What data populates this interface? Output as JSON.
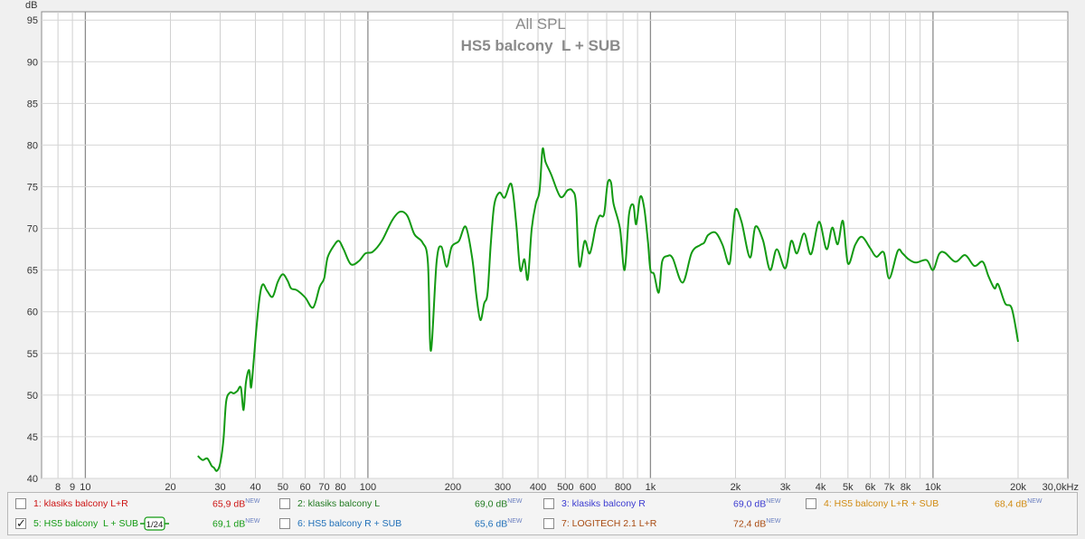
{
  "chart_data": {
    "type": "line",
    "title": "All SPL",
    "subtitle": "HS5 balcony  L + SUB",
    "ylabel": "dB",
    "xlabel": "",
    "x_scale": "log",
    "xlim": [
      7,
      30000
    ],
    "ylim": [
      40,
      96
    ],
    "grid": true,
    "y_ticks": [
      40,
      45,
      50,
      55,
      60,
      65,
      70,
      75,
      80,
      85,
      90,
      95
    ],
    "x_tick_labels": [
      {
        "f": 8,
        "t": "8"
      },
      {
        "f": 9,
        "t": "9"
      },
      {
        "f": 10,
        "t": "10"
      },
      {
        "f": 20,
        "t": "20"
      },
      {
        "f": 30,
        "t": "30"
      },
      {
        "f": 40,
        "t": "40"
      },
      {
        "f": 50,
        "t": "50"
      },
      {
        "f": 60,
        "t": "60"
      },
      {
        "f": 70,
        "t": "70"
      },
      {
        "f": 80,
        "t": "80"
      },
      {
        "f": 100,
        "t": "100"
      },
      {
        "f": 200,
        "t": "200"
      },
      {
        "f": 300,
        "t": "300"
      },
      {
        "f": 400,
        "t": "400"
      },
      {
        "f": 500,
        "t": "500"
      },
      {
        "f": 600,
        "t": "600"
      },
      {
        "f": 800,
        "t": "800"
      },
      {
        "f": 1000,
        "t": "1k"
      },
      {
        "f": 2000,
        "t": "2k"
      },
      {
        "f": 3000,
        "t": "3k"
      },
      {
        "f": 4000,
        "t": "4k"
      },
      {
        "f": 5000,
        "t": "5k"
      },
      {
        "f": 6000,
        "t": "6k"
      },
      {
        "f": 7000,
        "t": "7k"
      },
      {
        "f": 8000,
        "t": "8k"
      },
      {
        "f": 10000,
        "t": "10k"
      },
      {
        "f": 20000,
        "t": "20k"
      },
      {
        "f": 30000,
        "t": "30,0kHz"
      }
    ],
    "series": [
      {
        "name": "5: HS5 balcony  L + SUB",
        "color": "#139a13",
        "x": [
          25,
          26,
          27,
          28,
          28.5,
          29.2,
          30,
          30.8,
          31.5,
          32.5,
          33.5,
          34.5,
          35.5,
          36.3,
          37,
          38,
          38.6,
          39.4,
          40.3,
          41.5,
          42.5,
          44,
          46,
          48,
          50,
          52,
          53.5,
          56,
          60,
          64,
          67.5,
          70,
          72,
          76,
          79,
          82,
          87,
          93,
          98,
          104,
          112,
          122,
          130,
          138,
          146,
          156,
          163,
          167,
          175,
          182,
          190,
          198,
          210,
          222,
          234,
          242,
          250,
          258,
          265,
          272,
          280,
          292,
          305,
          322,
          335,
          346,
          358,
          368,
          380,
          393,
          405,
          415,
          425,
          445,
          480,
          510,
          530,
          545,
          560,
          585,
          610,
          640,
          660,
          685,
          705,
          725,
          740,
          780,
          810,
          840,
          870,
          890,
          920,
          950,
          980,
          1000,
          1030,
          1070,
          1100,
          1150,
          1200,
          1300,
          1400,
          1500,
          1550,
          1600,
          1700,
          1800,
          1900,
          1950,
          2000,
          2100,
          2250,
          2350,
          2500,
          2650,
          2800,
          3000,
          3150,
          3300,
          3500,
          3700,
          3950,
          4200,
          4400,
          4600,
          4800,
          5000,
          5300,
          5600,
          6000,
          6300,
          6700,
          7000,
          7500,
          7800,
          8200,
          8700,
          9500,
          10000,
          10500,
          11000,
          12000,
          13000,
          14000,
          15000,
          15700,
          16500,
          17000,
          18000,
          19000,
          20000
        ],
        "y": [
          42.7,
          42.2,
          42.4,
          41.5,
          41.3,
          40.9,
          41.8,
          44.6,
          49.2,
          50.3,
          50.2,
          50.5,
          50.9,
          48.2,
          51.5,
          53.0,
          50.9,
          54.0,
          58.0,
          62.0,
          63.3,
          62.5,
          61.8,
          63.6,
          64.5,
          63.7,
          62.8,
          62.6,
          61.7,
          60.5,
          63.0,
          64.0,
          66.5,
          68.0,
          68.5,
          67.5,
          65.7,
          66.1,
          67.0,
          67.2,
          68.5,
          71.0,
          72.0,
          71.5,
          69.3,
          68.3,
          66.0,
          55.3,
          66.0,
          67.8,
          65.4,
          67.8,
          68.5,
          70.2,
          66.4,
          62.0,
          59.0,
          61.0,
          62.2,
          68.0,
          72.8,
          74.3,
          73.7,
          75.3,
          70.5,
          65.0,
          66.3,
          63.9,
          70.0,
          73.0,
          74.5,
          79.5,
          78.0,
          76.5,
          73.8,
          74.6,
          74.5,
          73.0,
          65.5,
          68.5,
          67.0,
          70.2,
          71.5,
          71.7,
          75.4,
          75.5,
          73.0,
          70.0,
          65.0,
          71.7,
          72.8,
          70.5,
          73.8,
          72.5,
          68.3,
          65.0,
          64.5,
          62.3,
          66.0,
          66.7,
          66.4,
          63.5,
          67.1,
          68.0,
          68.3,
          69.2,
          69.5,
          68.0,
          65.7,
          69.0,
          72.3,
          70.8,
          66.5,
          70.2,
          68.6,
          65.0,
          67.5,
          65.2,
          68.5,
          67.0,
          69.4,
          66.9,
          70.8,
          67.5,
          70.1,
          68.1,
          70.9,
          65.8,
          68.0,
          69.0,
          67.6,
          66.6,
          67.1,
          64.0,
          67.3,
          67.0,
          66.3,
          65.9,
          66.2,
          65.0,
          66.9,
          67.1,
          66.0,
          66.8,
          65.5,
          66.0,
          64.3,
          62.8,
          63.3,
          61.0,
          60.4,
          56.4
        ]
      }
    ]
  },
  "legend": {
    "smoothing_label": "1/24",
    "entries": [
      {
        "label": "1: klasiks balcony L+R",
        "value": "65,9 dB",
        "badge": "NEW",
        "color": "#cc1111",
        "checked": false
      },
      {
        "label": "2: klasiks balcony L",
        "value": "69,0 dB",
        "badge": "NEW",
        "color": "#207a20",
        "checked": false
      },
      {
        "label": "3: klasiks balcony R",
        "value": "69,0 dB",
        "badge": "NEW",
        "color": "#3a3ad0",
        "checked": false
      },
      {
        "label": "4: HS5 balcony L+R + SUB",
        "value": "68,4 dB",
        "badge": "NEW",
        "color": "#d08a10",
        "checked": false
      },
      {
        "label": "5: HS5 balcony  L + SUB",
        "value": "69,1 dB",
        "badge": "NEW",
        "color": "#139a13",
        "checked": true
      },
      {
        "label": "6: HS5 balcony R + SUB",
        "value": "65,6 dB",
        "badge": "NEW",
        "color": "#1f6fb8",
        "checked": false
      },
      {
        "label": "7: LOGITECH 2.1 L+R",
        "value": "72,4 dB",
        "badge": "NEW",
        "color": "#a84a10",
        "checked": false
      }
    ]
  }
}
